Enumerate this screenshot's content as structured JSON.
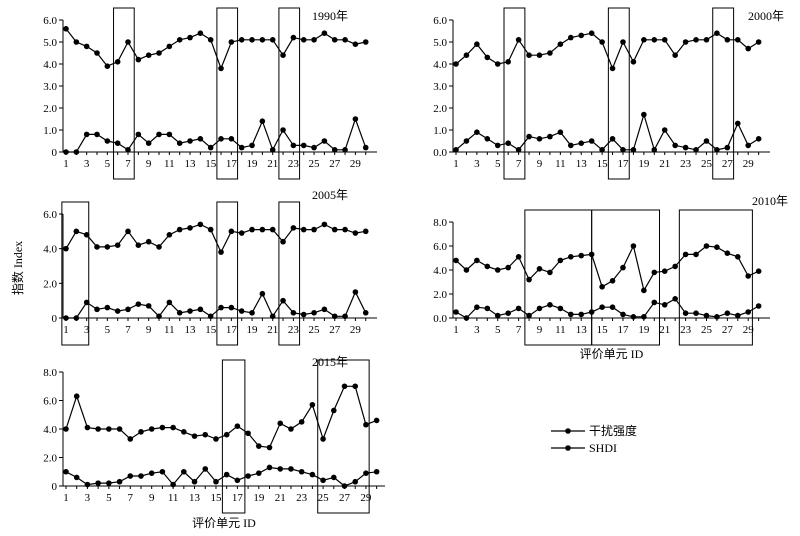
{
  "figure": {
    "ylabel": "指数 Index",
    "legend": [
      {
        "label": "干扰强度",
        "series": 0
      },
      {
        "label": "SHDI",
        "series": 1
      }
    ]
  },
  "chart_data": [
    {
      "type": "line",
      "title": "1990年",
      "xlabel": "",
      "ylabel": "指数 Index",
      "x": [
        1,
        2,
        3,
        4,
        5,
        6,
        7,
        8,
        9,
        10,
        11,
        12,
        13,
        14,
        15,
        16,
        17,
        18,
        19,
        20,
        21,
        22,
        23,
        24,
        25,
        26,
        27,
        28,
        29,
        30
      ],
      "xticks": [
        1,
        3,
        5,
        7,
        9,
        11,
        13,
        15,
        17,
        19,
        21,
        23,
        25,
        27,
        29
      ],
      "ylim": [
        0,
        6
      ],
      "yticks": [
        "0",
        "1.0",
        "2.0",
        "3.0",
        "4.0",
        "5.0",
        "6.0"
      ],
      "boxes": [
        [
          5.6,
          7.6
        ],
        [
          15.6,
          17.6
        ],
        [
          21.6,
          23.6
        ]
      ],
      "series": [
        {
          "name": "干扰强度",
          "values": [
            5.6,
            5.0,
            4.8,
            4.5,
            3.9,
            4.1,
            5.0,
            4.2,
            4.4,
            4.5,
            4.8,
            5.1,
            5.2,
            5.4,
            5.1,
            3.8,
            5.0,
            5.1,
            5.1,
            5.1,
            5.1,
            4.4,
            5.2,
            5.1,
            5.1,
            5.4,
            5.1,
            5.1,
            4.9,
            5.0
          ]
        },
        {
          "name": "SHDI",
          "values": [
            0.0,
            0.0,
            0.8,
            0.8,
            0.5,
            0.4,
            0.1,
            0.8,
            0.4,
            0.8,
            0.8,
            0.4,
            0.5,
            0.6,
            0.2,
            0.6,
            0.6,
            0.2,
            0.3,
            1.4,
            0.1,
            1.0,
            0.3,
            0.3,
            0.2,
            0.5,
            0.1,
            0.1,
            1.5,
            0.2
          ]
        }
      ]
    },
    {
      "type": "line",
      "title": "2000年",
      "xlabel": "",
      "ylabel": "",
      "x": [
        1,
        2,
        3,
        4,
        5,
        6,
        7,
        8,
        9,
        10,
        11,
        12,
        13,
        14,
        15,
        16,
        17,
        18,
        19,
        20,
        21,
        22,
        23,
        24,
        25,
        26,
        27,
        28,
        29,
        30
      ],
      "xticks": [
        1,
        3,
        5,
        7,
        9,
        11,
        13,
        15,
        17,
        19,
        21,
        23,
        25,
        27,
        29
      ],
      "ylim": [
        0,
        6
      ],
      "yticks": [
        "0.0",
        "1.0",
        "2.0",
        "3.0",
        "4.0",
        "5.0",
        "6.0"
      ],
      "boxes": [
        [
          5.6,
          7.6
        ],
        [
          15.6,
          17.6
        ],
        [
          25.6,
          27.6
        ]
      ],
      "series": [
        {
          "name": "干扰强度",
          "values": [
            4.0,
            4.4,
            4.9,
            4.3,
            4.0,
            4.1,
            5.1,
            4.4,
            4.4,
            4.5,
            4.9,
            5.2,
            5.3,
            5.4,
            5.0,
            3.8,
            5.0,
            4.1,
            5.1,
            5.1,
            5.1,
            4.4,
            5.0,
            5.1,
            5.1,
            5.4,
            5.1,
            5.1,
            4.7,
            5.0
          ]
        },
        {
          "name": "SHDI",
          "values": [
            0.1,
            0.5,
            0.9,
            0.6,
            0.3,
            0.4,
            0.1,
            0.7,
            0.6,
            0.7,
            0.9,
            0.3,
            0.4,
            0.5,
            0.1,
            0.6,
            0.1,
            0.1,
            1.7,
            0.1,
            1.0,
            0.3,
            0.2,
            0.1,
            0.5,
            0.1,
            0.2,
            1.3,
            0.3,
            0.6
          ]
        }
      ]
    },
    {
      "type": "line",
      "title": "2005年",
      "xlabel": "",
      "ylabel": "",
      "x": [
        1,
        2,
        3,
        4,
        5,
        6,
        7,
        8,
        9,
        10,
        11,
        12,
        13,
        14,
        15,
        16,
        17,
        18,
        19,
        20,
        21,
        22,
        23,
        24,
        25,
        26,
        27,
        28,
        29,
        30
      ],
      "xticks": [
        1,
        3,
        5,
        7,
        9,
        11,
        13,
        15,
        17,
        19,
        21,
        23,
        25,
        27,
        29
      ],
      "ylim": [
        0,
        6
      ],
      "yticks": [
        "0",
        "2.0",
        "4.0",
        "6.0"
      ],
      "boxes": [
        [
          0.6,
          3.2
        ],
        [
          15.6,
          17.6
        ],
        [
          21.6,
          23.6
        ]
      ],
      "series": [
        {
          "name": "干扰强度",
          "values": [
            4.0,
            5.0,
            4.8,
            4.1,
            4.1,
            4.2,
            5.0,
            4.2,
            4.4,
            4.1,
            4.8,
            5.1,
            5.2,
            5.4,
            5.1,
            3.8,
            5.0,
            4.9,
            5.1,
            5.1,
            5.1,
            4.4,
            5.2,
            5.1,
            5.1,
            5.4,
            5.1,
            5.1,
            4.9,
            5.0
          ]
        },
        {
          "name": "SHDI",
          "values": [
            0.0,
            0.0,
            0.9,
            0.5,
            0.6,
            0.4,
            0.5,
            0.8,
            0.7,
            0.1,
            0.9,
            0.3,
            0.4,
            0.5,
            0.1,
            0.6,
            0.6,
            0.4,
            0.3,
            1.4,
            0.1,
            1.0,
            0.3,
            0.2,
            0.3,
            0.5,
            0.1,
            0.1,
            1.5,
            0.3
          ]
        }
      ]
    },
    {
      "type": "line",
      "title": "2010年",
      "xlabel": "评价单元 ID",
      "ylabel": "",
      "x": [
        1,
        2,
        3,
        4,
        5,
        6,
        7,
        8,
        9,
        10,
        11,
        12,
        13,
        14,
        15,
        16,
        17,
        18,
        19,
        20,
        21,
        22,
        23,
        24,
        25,
        26,
        27,
        28,
        29,
        30
      ],
      "xticks": [
        1,
        3,
        5,
        7,
        9,
        11,
        13,
        15,
        17,
        19,
        21,
        23,
        25,
        27,
        29
      ],
      "ylim": [
        0,
        8
      ],
      "yticks": [
        "0.0",
        "2.0",
        "4.0",
        "6.0",
        "8.0"
      ],
      "boxes": [
        [
          7.6,
          14.0
        ],
        [
          14.0,
          20.5
        ],
        [
          22.4,
          29.4
        ]
      ],
      "series": [
        {
          "name": "干扰强度",
          "values": [
            4.8,
            4.0,
            4.8,
            4.3,
            4.0,
            4.2,
            5.1,
            3.2,
            4.1,
            3.8,
            4.8,
            5.1,
            5.2,
            5.3,
            2.6,
            3.1,
            4.2,
            6.0,
            2.3,
            3.8,
            3.9,
            4.3,
            5.3,
            5.3,
            6.0,
            5.9,
            5.4,
            5.1,
            3.5,
            3.9
          ]
        },
        {
          "name": "SHDI",
          "values": [
            0.5,
            0.0,
            0.9,
            0.8,
            0.2,
            0.4,
            0.8,
            0.2,
            0.8,
            1.1,
            0.8,
            0.3,
            0.3,
            0.5,
            0.9,
            0.9,
            0.3,
            0.1,
            0.1,
            1.3,
            1.1,
            1.6,
            0.4,
            0.4,
            0.2,
            0.1,
            0.4,
            0.2,
            0.5,
            1.0
          ]
        }
      ]
    },
    {
      "type": "line",
      "title": "2015年",
      "xlabel": "评价单元 ID",
      "ylabel": "",
      "x": [
        1,
        2,
        3,
        4,
        5,
        6,
        7,
        8,
        9,
        10,
        11,
        12,
        13,
        14,
        15,
        16,
        17,
        18,
        19,
        20,
        21,
        22,
        23,
        24,
        25,
        26,
        27,
        28,
        29,
        30
      ],
      "xticks": [
        1,
        3,
        5,
        7,
        9,
        11,
        13,
        15,
        17,
        19,
        21,
        23,
        25,
        27,
        29
      ],
      "ylim": [
        0,
        8
      ],
      "yticks": [
        "0",
        "2.0",
        "4.0",
        "6.0",
        "8.0"
      ],
      "boxes": [
        [
          15.6,
          17.7
        ],
        [
          24.5,
          29.3
        ]
      ],
      "series": [
        {
          "name": "干扰强度",
          "values": [
            4.0,
            6.3,
            4.1,
            4.0,
            4.0,
            4.0,
            3.3,
            3.8,
            4.0,
            4.1,
            4.1,
            3.8,
            3.5,
            3.6,
            3.3,
            3.6,
            4.2,
            3.7,
            2.8,
            2.7,
            4.4,
            4.0,
            4.5,
            5.7,
            3.3,
            5.3,
            7.0,
            7.0,
            4.3,
            4.6
          ]
        },
        {
          "name": "SHDI",
          "values": [
            1.0,
            0.6,
            0.1,
            0.2,
            0.2,
            0.3,
            0.7,
            0.7,
            0.9,
            1.0,
            0.1,
            1.0,
            0.3,
            1.2,
            0.3,
            0.8,
            0.4,
            0.7,
            0.9,
            1.3,
            1.2,
            1.2,
            1.0,
            0.8,
            0.4,
            0.6,
            0.0,
            0.3,
            0.9,
            1.0
          ]
        }
      ]
    }
  ]
}
